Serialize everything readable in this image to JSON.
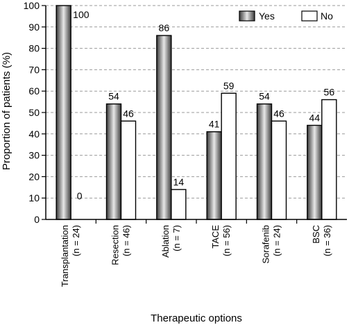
{
  "chart_data": {
    "type": "bar",
    "title": "",
    "xlabel": "Therapeutic options",
    "ylabel": "Proportion of patients (%)",
    "ylim": [
      0,
      100
    ],
    "yticks": [
      0,
      10,
      20,
      30,
      40,
      50,
      60,
      70,
      80,
      90,
      100
    ],
    "grid": "horizontal dashed",
    "legend_position": "top-right",
    "categories": [
      {
        "name": "Transplantation",
        "n": "(n = 24)"
      },
      {
        "name": "Resection",
        "n": "(n = 46)"
      },
      {
        "name": "Ablation",
        "n": "(n = 7)"
      },
      {
        "name": "TACE",
        "n": "(n = 56)"
      },
      {
        "name": "Sorafenib",
        "n": "(n = 24)"
      },
      {
        "name": "BSC",
        "n": "(n = 36)"
      }
    ],
    "series": [
      {
        "name": "Yes",
        "values": [
          100,
          54,
          86,
          41,
          54,
          44
        ],
        "style": "gray-gradient"
      },
      {
        "name": "No",
        "values": [
          0,
          46,
          14,
          59,
          46,
          56
        ],
        "style": "white"
      }
    ]
  },
  "colors": {
    "yes_dark": "#3a3a3a",
    "yes_light": "#e8e8e8",
    "no_fill": "#ffffff",
    "stroke": "#000000",
    "grid": "#9a9a9a"
  }
}
